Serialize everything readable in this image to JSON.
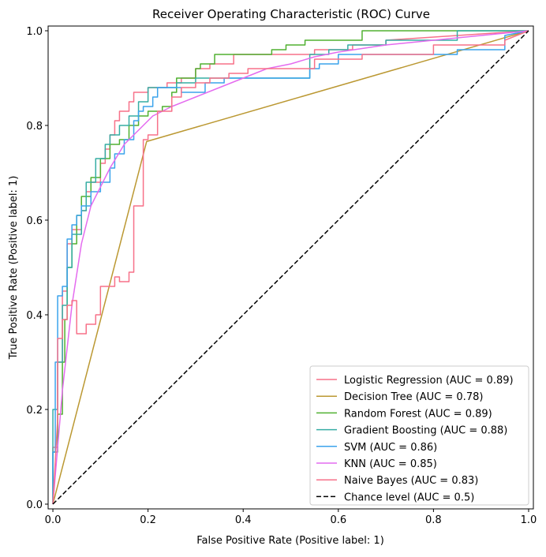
{
  "chart_data": {
    "type": "line",
    "title": "Receiver Operating Characteristic (ROC) Curve",
    "xlabel": "False Positive Rate (Positive label: 1)",
    "ylabel": "True Positive Rate (Positive label: 1)",
    "xlim": [
      -0.01,
      1.01
    ],
    "ylim": [
      -0.01,
      1.01
    ],
    "xticks": [
      "0.0",
      "0.2",
      "0.4",
      "0.6",
      "0.8",
      "1.0"
    ],
    "yticks": [
      "0.0",
      "0.2",
      "0.4",
      "0.6",
      "0.8",
      "1.0"
    ],
    "grid": false,
    "legend_position": "lower-right",
    "series": [
      {
        "name": "Logistic Regression (AUC = 0.89)",
        "color": "#f77189",
        "dash": "solid",
        "x": [
          0,
          0,
          0.01,
          0.01,
          0.02,
          0.02,
          0.03,
          0.03,
          0.04,
          0.04,
          0.06,
          0.06,
          0.07,
          0.07,
          0.08,
          0.08,
          0.1,
          0.1,
          0.11,
          0.11,
          0.12,
          0.12,
          0.13,
          0.13,
          0.14,
          0.14,
          0.16,
          0.16,
          0.17,
          0.17,
          0.2,
          0.2,
          0.24,
          0.24,
          0.27,
          0.27,
          0.3,
          0.3,
          0.33,
          0.33,
          0.38,
          0.38,
          0.55,
          0.55,
          0.63,
          0.63,
          0.7,
          0.7,
          1
        ],
        "y": [
          0,
          0.12,
          0.12,
          0.3,
          0.3,
          0.45,
          0.45,
          0.55,
          0.55,
          0.58,
          0.58,
          0.62,
          0.62,
          0.66,
          0.66,
          0.68,
          0.68,
          0.72,
          0.72,
          0.75,
          0.75,
          0.78,
          0.78,
          0.81,
          0.81,
          0.83,
          0.83,
          0.85,
          0.85,
          0.87,
          0.87,
          0.88,
          0.88,
          0.89,
          0.89,
          0.9,
          0.9,
          0.92,
          0.92,
          0.93,
          0.93,
          0.95,
          0.95,
          0.96,
          0.96,
          0.97,
          0.97,
          0.98,
          1
        ]
      },
      {
        "name": "Decision Tree (AUC = 0.78)",
        "color": "#bb9832",
        "dash": "solid",
        "x": [
          0,
          0.197,
          1
        ],
        "y": [
          0,
          0.766,
          1
        ]
      },
      {
        "name": "Random Forest (AUC = 0.89)",
        "color": "#50b131",
        "dash": "solid",
        "x": [
          0,
          0,
          0.01,
          0.01,
          0.02,
          0.02,
          0.025,
          0.025,
          0.03,
          0.03,
          0.04,
          0.04,
          0.05,
          0.05,
          0.06,
          0.06,
          0.08,
          0.08,
          0.1,
          0.1,
          0.12,
          0.12,
          0.14,
          0.14,
          0.16,
          0.16,
          0.18,
          0.18,
          0.2,
          0.2,
          0.23,
          0.23,
          0.25,
          0.25,
          0.26,
          0.26,
          0.3,
          0.3,
          0.31,
          0.31,
          0.33,
          0.33,
          0.34,
          0.34,
          0.46,
          0.46,
          0.49,
          0.49,
          0.51,
          0.51,
          0.53,
          0.53,
          0.65,
          0.65,
          0.66,
          0.66,
          0.75,
          0.75,
          1
        ],
        "y": [
          0,
          0.11,
          0.11,
          0.19,
          0.19,
          0.3,
          0.3,
          0.39,
          0.39,
          0.5,
          0.5,
          0.55,
          0.55,
          0.61,
          0.61,
          0.65,
          0.65,
          0.69,
          0.69,
          0.73,
          0.73,
          0.76,
          0.76,
          0.77,
          0.77,
          0.8,
          0.8,
          0.82,
          0.82,
          0.83,
          0.83,
          0.84,
          0.84,
          0.87,
          0.87,
          0.9,
          0.9,
          0.92,
          0.92,
          0.93,
          0.93,
          0.93,
          0.93,
          0.95,
          0.95,
          0.96,
          0.96,
          0.97,
          0.97,
          0.97,
          0.97,
          0.98,
          0.98,
          1,
          1,
          1,
          1,
          1,
          1
        ]
      },
      {
        "name": "Gradient Boosting (AUC = 0.88)",
        "color": "#36ada4",
        "dash": "solid",
        "x": [
          0,
          0,
          0.01,
          0.01,
          0.02,
          0.02,
          0.03,
          0.03,
          0.04,
          0.04,
          0.06,
          0.06,
          0.07,
          0.07,
          0.09,
          0.09,
          0.11,
          0.11,
          0.12,
          0.12,
          0.14,
          0.14,
          0.16,
          0.16,
          0.18,
          0.18,
          0.2,
          0.2,
          0.22,
          0.22,
          0.26,
          0.26,
          0.3,
          0.3,
          0.54,
          0.54,
          0.58,
          0.58,
          0.62,
          0.62,
          0.7,
          0.7,
          0.85,
          0.85,
          1
        ],
        "y": [
          0,
          0.2,
          0.2,
          0.3,
          0.3,
          0.42,
          0.42,
          0.5,
          0.5,
          0.57,
          0.57,
          0.62,
          0.62,
          0.68,
          0.68,
          0.73,
          0.73,
          0.76,
          0.76,
          0.78,
          0.78,
          0.8,
          0.8,
          0.82,
          0.82,
          0.85,
          0.85,
          0.88,
          0.88,
          0.88,
          0.88,
          0.89,
          0.89,
          0.9,
          0.9,
          0.95,
          0.95,
          0.96,
          0.96,
          0.97,
          0.97,
          0.98,
          0.98,
          1,
          1
        ]
      },
      {
        "name": "SVM (AUC = 0.86)",
        "color": "#3ba3ec",
        "dash": "solid",
        "x": [
          0,
          0,
          0.005,
          0.005,
          0.01,
          0.01,
          0.02,
          0.02,
          0.03,
          0.03,
          0.04,
          0.04,
          0.05,
          0.05,
          0.06,
          0.06,
          0.08,
          0.08,
          0.1,
          0.1,
          0.12,
          0.12,
          0.13,
          0.13,
          0.15,
          0.15,
          0.17,
          0.17,
          0.18,
          0.18,
          0.19,
          0.19,
          0.21,
          0.21,
          0.22,
          0.22,
          0.27,
          0.27,
          0.32,
          0.32,
          0.36,
          0.36,
          0.54,
          0.54,
          0.56,
          0.56,
          0.6,
          0.6,
          0.85,
          0.85,
          0.95,
          0.95,
          1
        ],
        "y": [
          0,
          0.11,
          0.11,
          0.3,
          0.3,
          0.44,
          0.44,
          0.46,
          0.46,
          0.56,
          0.56,
          0.59,
          0.59,
          0.61,
          0.61,
          0.63,
          0.63,
          0.66,
          0.66,
          0.68,
          0.68,
          0.71,
          0.71,
          0.74,
          0.74,
          0.77,
          0.77,
          0.81,
          0.81,
          0.83,
          0.83,
          0.84,
          0.84,
          0.86,
          0.86,
          0.88,
          0.88,
          0.87,
          0.87,
          0.89,
          0.89,
          0.9,
          0.9,
          0.92,
          0.92,
          0.93,
          0.93,
          0.95,
          0.95,
          0.96,
          0.96,
          0.99,
          1
        ]
      },
      {
        "name": "KNN (AUC = 0.85)",
        "color": "#e46bef",
        "dash": "solid",
        "x": [
          0,
          0.02,
          0.04,
          0.06,
          0.08,
          0.1,
          0.12,
          0.15,
          0.18,
          0.21,
          0.25,
          0.3,
          0.35,
          0.4,
          0.45,
          0.5,
          0.55,
          0.6,
          0.7,
          0.8,
          0.9,
          1
        ],
        "y": [
          0,
          0.24,
          0.42,
          0.55,
          0.63,
          0.67,
          0.71,
          0.76,
          0.79,
          0.82,
          0.84,
          0.86,
          0.88,
          0.9,
          0.92,
          0.93,
          0.945,
          0.955,
          0.97,
          0.98,
          0.99,
          1
        ]
      },
      {
        "name": "Naive Bayes (AUC = 0.83)",
        "color": "#f77189",
        "dash": "solid",
        "x": [
          0,
          0.01,
          0.01,
          0.02,
          0.02,
          0.03,
          0.03,
          0.04,
          0.04,
          0.05,
          0.05,
          0.07,
          0.07,
          0.09,
          0.09,
          0.1,
          0.1,
          0.13,
          0.13,
          0.14,
          0.14,
          0.16,
          0.16,
          0.17,
          0.17,
          0.19,
          0.19,
          0.2,
          0.2,
          0.22,
          0.22,
          0.25,
          0.25,
          0.27,
          0.27,
          0.3,
          0.3,
          0.33,
          0.33,
          0.35,
          0.35,
          0.37,
          0.37,
          0.39,
          0.39,
          0.41,
          0.41,
          0.55,
          0.55,
          0.65,
          0.65,
          0.8,
          0.8,
          0.95,
          0.95,
          1
        ],
        "y": [
          0,
          0.18,
          0.35,
          0.35,
          0.39,
          0.39,
          0.42,
          0.42,
          0.43,
          0.43,
          0.36,
          0.36,
          0.38,
          0.38,
          0.4,
          0.4,
          0.46,
          0.46,
          0.48,
          0.48,
          0.47,
          0.47,
          0.49,
          0.49,
          0.63,
          0.63,
          0.77,
          0.77,
          0.78,
          0.78,
          0.83,
          0.83,
          0.86,
          0.86,
          0.88,
          0.88,
          0.89,
          0.89,
          0.9,
          0.9,
          0.9,
          0.9,
          0.91,
          0.91,
          0.91,
          0.91,
          0.92,
          0.92,
          0.94,
          0.94,
          0.95,
          0.95,
          0.97,
          0.97,
          0.98,
          1
        ]
      },
      {
        "name": "Chance level (AUC = 0.5)",
        "color": "#000000",
        "dash": "dashed",
        "x": [
          0,
          1
        ],
        "y": [
          0,
          1
        ]
      }
    ]
  }
}
